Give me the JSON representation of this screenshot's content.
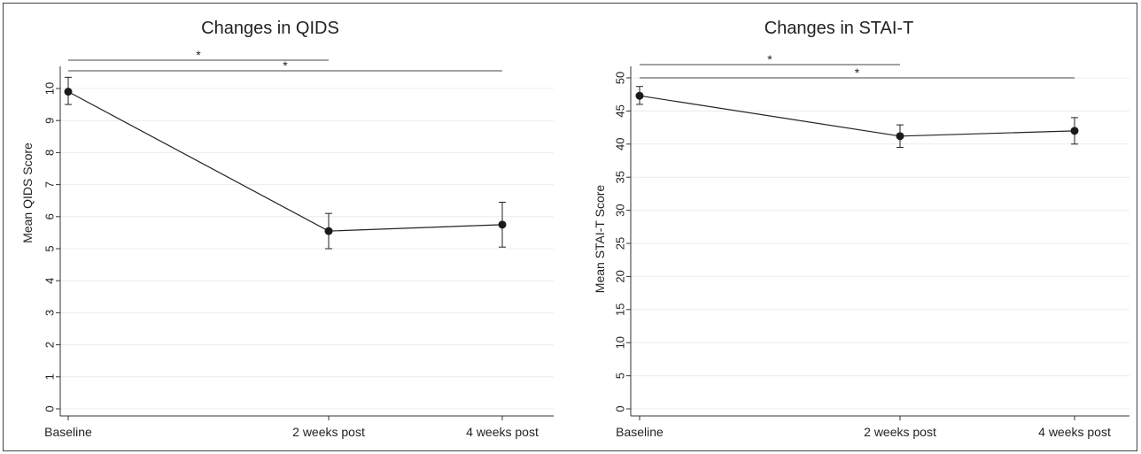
{
  "chart_data": [
    {
      "type": "line",
      "title": "Changes in QIDS",
      "xlabel": "",
      "ylabel": "Mean QIDS Score",
      "categories": [
        "Baseline",
        "2 weeks post",
        "4 weeks post"
      ],
      "values": [
        9.9,
        5.55,
        5.75
      ],
      "error_low": [
        9.5,
        5.0,
        5.05
      ],
      "error_high": [
        10.35,
        6.1,
        6.45
      ],
      "ylim": [
        0,
        10
      ],
      "yticks": [
        0,
        1,
        2,
        3,
        4,
        5,
        6,
        7,
        8,
        9,
        10
      ],
      "grid": true,
      "significance": [
        {
          "from": "Baseline",
          "to": "2 weeks post",
          "label": "*"
        },
        {
          "from": "Baseline",
          "to": "4 weeks post",
          "label": "*"
        }
      ]
    },
    {
      "type": "line",
      "title": "Changes in STAI-T",
      "xlabel": "",
      "ylabel": "Mean STAI-T Score",
      "categories": [
        "Baseline",
        "2 weeks post",
        "4 weeks post"
      ],
      "values": [
        47.3,
        41.2,
        42.0
      ],
      "error_low": [
        46.0,
        39.5,
        40.0
      ],
      "error_high": [
        48.7,
        42.9,
        44.0
      ],
      "ylim": [
        0,
        50
      ],
      "yticks": [
        0,
        5,
        10,
        15,
        20,
        25,
        30,
        35,
        40,
        45,
        50
      ],
      "grid": true,
      "significance": [
        {
          "from": "Baseline",
          "to": "2 weeks post",
          "label": "*"
        },
        {
          "from": "Baseline",
          "to": "4 weeks post",
          "label": "*"
        }
      ]
    }
  ]
}
